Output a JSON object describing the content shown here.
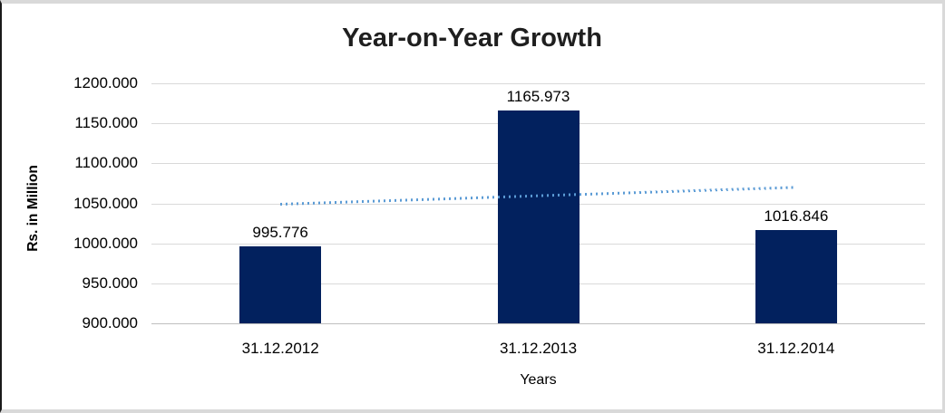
{
  "chart_data": {
    "type": "bar",
    "title": "Year-on-Year Growth",
    "xlabel": "Years",
    "ylabel": "Rs. in Million",
    "categories": [
      "31.12.2012",
      "31.12.2013",
      "31.12.2014"
    ],
    "values": [
      995.776,
      1165.973,
      1016.846
    ],
    "value_labels": [
      "995.776",
      "1165.973",
      "1016.846"
    ],
    "ylim": [
      900,
      1200
    ],
    "ytick_step": 50,
    "ytick_labels": [
      "1200.000",
      "1150.000",
      "1100.000",
      "1050.000",
      "1000.000",
      "950.000",
      "900.000"
    ],
    "grid": true,
    "legend": "none",
    "trendline": {
      "type": "linear",
      "style": "dotted",
      "start_value": 1049.0,
      "end_value": 1070.1
    }
  },
  "colors": {
    "bar": "#02215E",
    "trendline": "#5B9BD5",
    "gridline": "#D9D9D9",
    "axis_line": "#BFBFBF",
    "title_text": "#1F1F1F",
    "label_text": "#000000"
  }
}
